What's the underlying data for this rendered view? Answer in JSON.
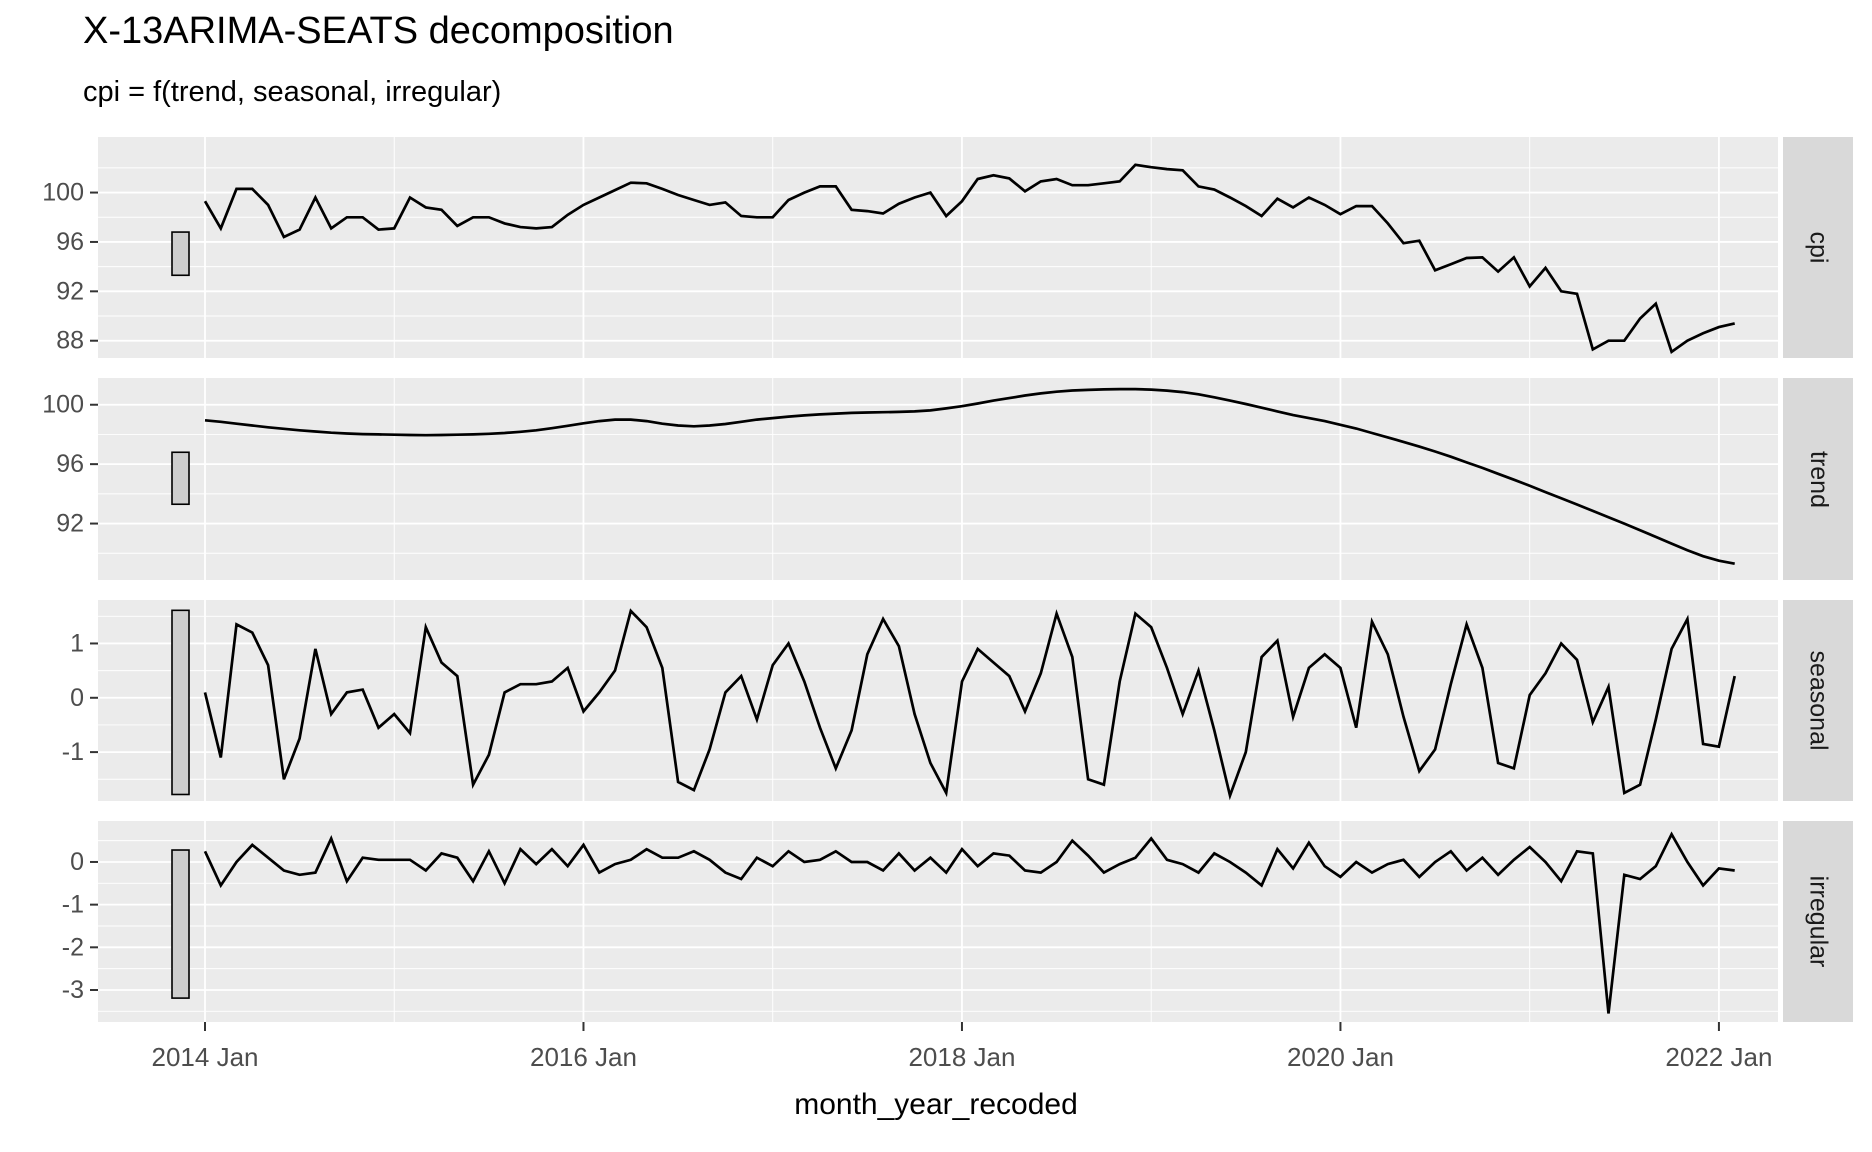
{
  "header": {
    "title": "X-13ARIMA-SEATS decomposition",
    "subtitle": "cpi = f(trend, seasonal, irregular)"
  },
  "chart_data": {
    "type": "line",
    "title": "X-13ARIMA-SEATS decomposition",
    "subtitle": "cpi = f(trend, seasonal, irregular)",
    "xlabel": "month_year_recoded",
    "x_start": "2014 Jan",
    "x_frequency": "monthly",
    "x_tick_labels": [
      "2014 Jan",
      "2016 Jan",
      "2018 Jan",
      "2020 Jan",
      "2022 Jan"
    ],
    "x_tick_month_index": [
      0,
      24,
      48,
      72,
      96
    ],
    "x_minor_month_index": [
      12,
      36,
      60,
      84
    ],
    "legend": "none",
    "grid": "on",
    "colors": {
      "line": "#000000",
      "panel_background": "#ebebeb",
      "gridline": "#ffffff",
      "strip_background": "#d9d9d9",
      "strip_text": "#1a1a1a",
      "axis_text": "#4d4d4d",
      "tick_mark": "#333333",
      "scale_bar_fill": "#cecece",
      "scale_bar_border": "#000000"
    },
    "panels": [
      {
        "label": "cpi",
        "y_domain": [
          86.6,
          104.5
        ],
        "y_ticks": [
          88,
          92,
          96,
          100
        ],
        "y_minor": [
          86,
          90,
          94,
          98,
          102
        ],
        "scale_bar": [
          93.3,
          96.8
        ],
        "values": [
          99.3,
          97.1,
          100.3,
          100.3,
          99.0,
          96.4,
          97.0,
          99.6,
          97.1,
          98.0,
          98.0,
          97.0,
          97.1,
          99.6,
          98.8,
          98.6,
          97.3,
          98.0,
          98.0,
          97.5,
          97.2,
          97.1,
          97.2,
          98.2,
          99.0,
          99.6,
          100.2,
          100.8,
          100.75,
          100.3,
          99.8,
          99.4,
          99.0,
          99.2,
          98.1,
          98.0,
          98.0,
          99.4,
          100.0,
          100.5,
          100.5,
          98.6,
          98.5,
          98.3,
          99.1,
          99.6,
          100.0,
          98.1,
          99.3,
          101.1,
          101.4,
          101.15,
          100.1,
          100.9,
          101.1,
          100.6,
          100.6,
          100.75,
          100.9,
          102.25,
          102.05,
          101.9,
          101.8,
          100.5,
          100.25,
          99.6,
          98.9,
          98.1,
          99.5,
          98.8,
          99.6,
          99.0,
          98.25,
          98.9,
          98.9,
          97.5,
          95.9,
          96.1,
          93.7,
          94.2,
          94.7,
          94.75,
          93.6,
          94.75,
          92.4,
          93.9,
          92.0,
          91.8,
          87.3,
          88.0,
          88.0,
          89.8,
          91.0,
          87.1,
          88.0,
          88.6,
          89.1,
          89.4
        ]
      },
      {
        "label": "trend",
        "y_domain": [
          88.2,
          101.8
        ],
        "y_ticks": [
          92,
          96,
          100
        ],
        "y_minor": [
          90,
          94,
          98
        ],
        "scale_bar": [
          93.3,
          96.8
        ],
        "values": [
          98.95,
          98.85,
          98.72,
          98.6,
          98.48,
          98.38,
          98.28,
          98.2,
          98.12,
          98.06,
          98.02,
          98.0,
          97.98,
          97.96,
          97.95,
          97.96,
          97.98,
          98.0,
          98.04,
          98.1,
          98.18,
          98.28,
          98.42,
          98.58,
          98.75,
          98.9,
          99.0,
          99.0,
          98.9,
          98.72,
          98.6,
          98.55,
          98.6,
          98.7,
          98.85,
          99.0,
          99.1,
          99.2,
          99.28,
          99.35,
          99.4,
          99.45,
          99.48,
          99.5,
          99.52,
          99.55,
          99.62,
          99.75,
          99.9,
          100.08,
          100.28,
          100.45,
          100.62,
          100.76,
          100.88,
          100.96,
          101.0,
          101.03,
          101.05,
          101.05,
          101.02,
          100.95,
          100.85,
          100.7,
          100.5,
          100.28,
          100.05,
          99.8,
          99.55,
          99.3,
          99.1,
          98.9,
          98.65,
          98.4,
          98.1,
          97.8,
          97.5,
          97.18,
          96.85,
          96.5,
          96.12,
          95.75,
          95.35,
          94.95,
          94.55,
          94.12,
          93.7,
          93.28,
          92.85,
          92.42,
          92.0,
          91.55,
          91.1,
          90.65,
          90.2,
          89.8,
          89.5,
          89.3
        ]
      },
      {
        "label": "seasonal",
        "y_domain": [
          -1.9,
          1.8
        ],
        "y_ticks": [
          -1,
          0,
          1
        ],
        "y_minor": [
          -1.5,
          -0.5,
          0.5,
          1.5
        ],
        "scale_bar": [
          -1.78,
          1.61
        ],
        "values": [
          0.1,
          -1.1,
          1.35,
          1.2,
          0.6,
          -1.5,
          -0.75,
          0.9,
          -0.3,
          0.1,
          0.15,
          -0.55,
          -0.3,
          -0.65,
          1.3,
          0.65,
          0.4,
          -1.6,
          -1.05,
          0.1,
          0.25,
          0.25,
          0.3,
          0.55,
          -0.25,
          0.1,
          0.5,
          1.6,
          1.3,
          0.55,
          -1.55,
          -1.7,
          -0.95,
          0.1,
          0.4,
          -0.4,
          0.6,
          1.0,
          0.3,
          -0.55,
          -1.3,
          -0.6,
          0.8,
          1.45,
          0.95,
          -0.3,
          -1.2,
          -1.75,
          0.3,
          0.9,
          0.65,
          0.4,
          -0.25,
          0.45,
          1.55,
          0.75,
          -1.5,
          -1.6,
          0.3,
          1.55,
          1.3,
          0.55,
          -0.3,
          0.5,
          -0.6,
          -1.8,
          -1.0,
          0.75,
          1.05,
          -0.35,
          0.55,
          0.8,
          0.55,
          -0.55,
          1.4,
          0.8,
          -0.35,
          -1.35,
          -0.95,
          0.25,
          1.35,
          0.55,
          -1.2,
          -1.3,
          0.05,
          0.45,
          1.0,
          0.7,
          -0.45,
          0.2,
          -1.75,
          -1.6,
          -0.4,
          0.9,
          1.45,
          -0.85,
          -0.9,
          0.4
        ]
      },
      {
        "label": "irregular",
        "y_domain": [
          -3.75,
          0.96
        ],
        "y_ticks": [
          -3,
          -2,
          -1,
          0
        ],
        "y_minor": [
          -3.5,
          -2.5,
          -1.5,
          -0.5,
          0.5
        ],
        "scale_bar": [
          -3.19,
          0.28
        ],
        "values": [
          0.25,
          -0.55,
          0.0,
          0.4,
          0.1,
          -0.2,
          -0.3,
          -0.25,
          0.55,
          -0.45,
          0.1,
          0.05,
          0.05,
          0.05,
          -0.2,
          0.2,
          0.1,
          -0.45,
          0.25,
          -0.5,
          0.3,
          -0.05,
          0.3,
          -0.1,
          0.4,
          -0.25,
          -0.05,
          0.05,
          0.3,
          0.1,
          0.1,
          0.25,
          0.05,
          -0.25,
          -0.4,
          0.1,
          -0.1,
          0.25,
          0.0,
          0.05,
          0.25,
          0.0,
          0.0,
          -0.2,
          0.2,
          -0.2,
          0.1,
          -0.25,
          0.3,
          -0.1,
          0.2,
          0.15,
          -0.2,
          -0.25,
          0.0,
          0.5,
          0.15,
          -0.25,
          -0.05,
          0.1,
          0.55,
          0.05,
          -0.05,
          -0.25,
          0.2,
          0.0,
          -0.25,
          -0.55,
          0.3,
          -0.15,
          0.45,
          -0.1,
          -0.35,
          0.0,
          -0.25,
          -0.05,
          0.05,
          -0.35,
          0.0,
          0.25,
          -0.2,
          0.1,
          -0.3,
          0.05,
          0.35,
          0.0,
          -0.45,
          0.25,
          0.2,
          -3.55,
          -0.3,
          -0.4,
          -0.1,
          0.65,
          0.0,
          -0.55,
          -0.15,
          -0.2
        ]
      }
    ]
  }
}
